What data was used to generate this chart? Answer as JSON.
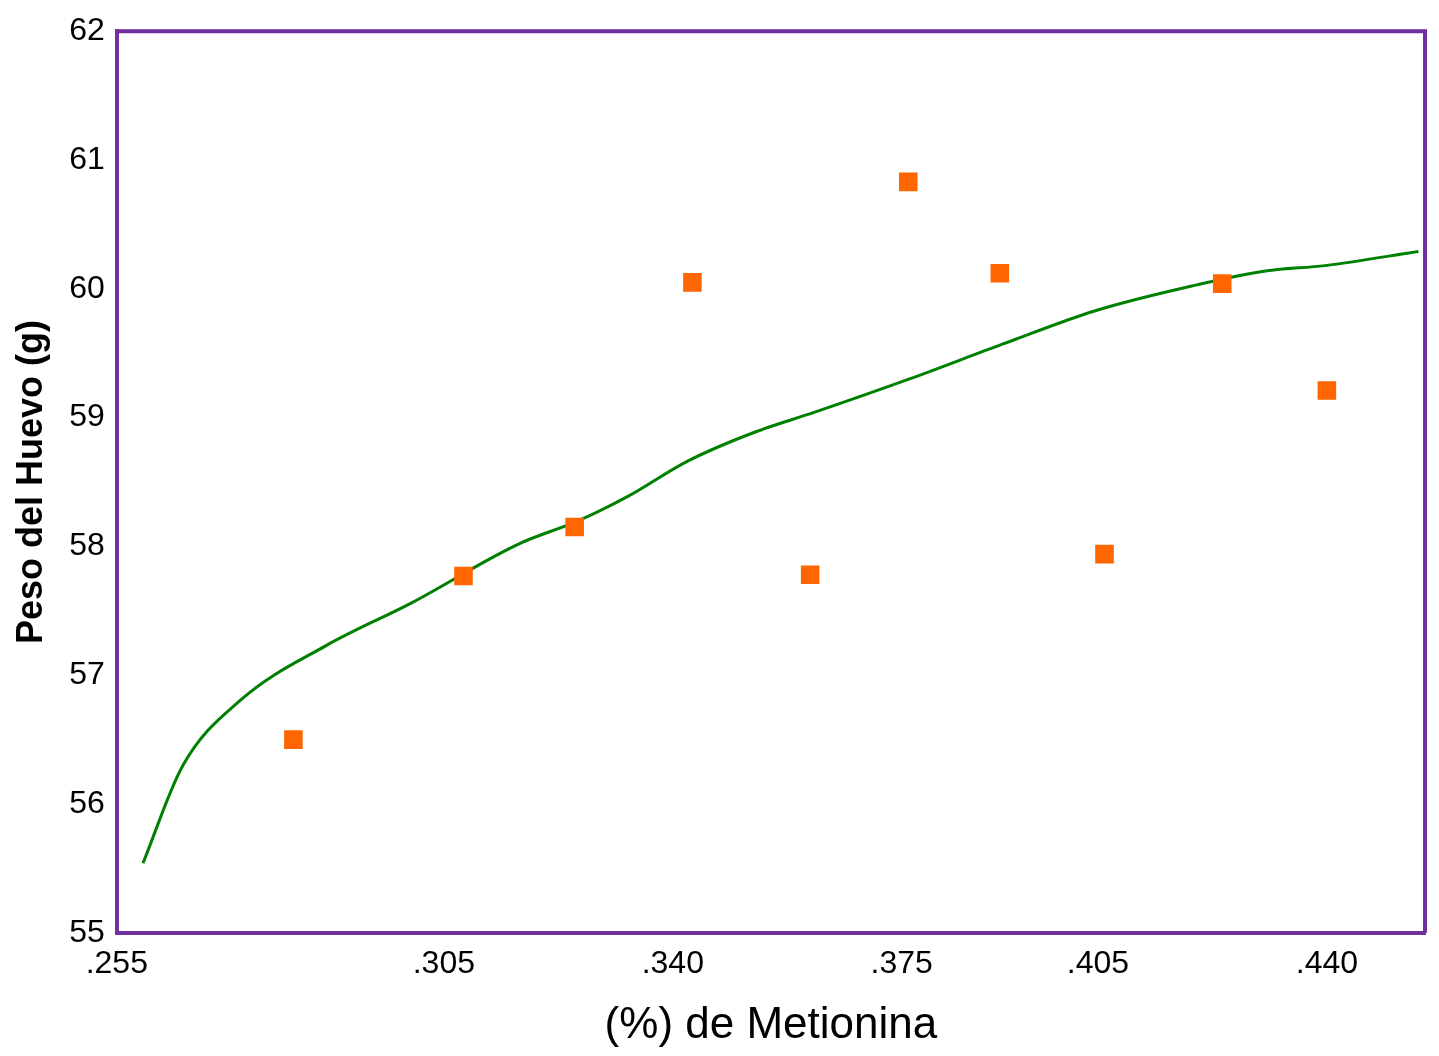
{
  "chart_data": {
    "type": "scatter",
    "xlabel": "(%) de Metionina",
    "ylabel": "Peso del Huevo (g)",
    "xlim": [
      0.255,
      0.455
    ],
    "ylim": [
      55,
      62
    ],
    "xticks": [
      {
        "value": 0.255,
        "label": ".255"
      },
      {
        "value": 0.305,
        "label": ".305"
      },
      {
        "value": 0.34,
        "label": ".340"
      },
      {
        "value": 0.375,
        "label": ".375"
      },
      {
        "value": 0.405,
        "label": ".405"
      },
      {
        "value": 0.44,
        "label": ".440"
      }
    ],
    "yticks": [
      55,
      56,
      57,
      58,
      59,
      60,
      61,
      62
    ],
    "grid": false,
    "series": [
      {
        "type": "scatter",
        "color": "#ff6600",
        "marker": "square",
        "x": [
          0.282,
          0.308,
          0.325,
          0.343,
          0.361,
          0.376,
          0.39,
          0.406,
          0.424,
          0.44
        ],
        "values": [
          56.5,
          57.77,
          58.15,
          60.05,
          57.78,
          60.83,
          60.12,
          57.94,
          60.04,
          59.21
        ]
      },
      {
        "type": "line",
        "color": "#008000",
        "marker": "none",
        "line_style": "solid",
        "x": [
          0.259,
          0.265,
          0.274,
          0.287,
          0.3,
          0.3165,
          0.3256,
          0.3332,
          0.3422,
          0.3527,
          0.3616,
          0.3762,
          0.3904,
          0.4046,
          0.4192,
          0.4309,
          0.4397,
          0.454
        ],
        "values": [
          55.54,
          56.29,
          56.81,
          57.23,
          57.56,
          58.02,
          58.2,
          58.39,
          58.66,
          58.89,
          59.04,
          59.3,
          59.57,
          59.83,
          60.02,
          60.14,
          60.18,
          60.29
        ]
      }
    ]
  }
}
